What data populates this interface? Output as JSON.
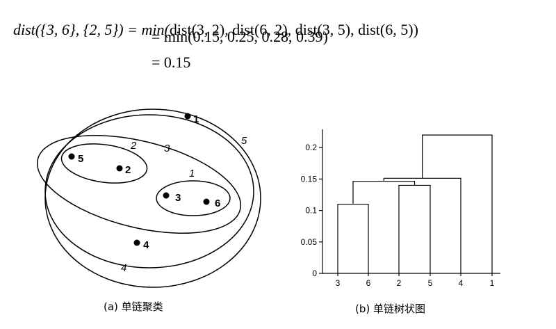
{
  "equations": {
    "line1_lhs": "dist({3, 6}, {2, 5}) = min(",
    "line1_rhs": "dist(3, 2), dist(6, 2), dist(3, 5), dist(6, 5))",
    "line2": "= min(0.15, 0.25, 0.28, 0.39)",
    "line3": "= 0.15"
  },
  "cluster_figure": {
    "caption": "(a)  单链聚类",
    "points": [
      {
        "id": "1",
        "label": "1"
      },
      {
        "id": "2",
        "label": "2"
      },
      {
        "id": "3",
        "label": "3"
      },
      {
        "id": "4",
        "label": "4"
      },
      {
        "id": "5",
        "label": "5"
      },
      {
        "id": "6",
        "label": "6"
      }
    ],
    "cluster_labels": [
      "1",
      "2",
      "3",
      "4",
      "5"
    ]
  },
  "chart_data": {
    "type": "dendrogram",
    "caption": "(b)  单链树状图",
    "leaves": [
      "3",
      "6",
      "2",
      "5",
      "4",
      "1"
    ],
    "ylim": [
      0,
      0.22
    ],
    "yticks": [
      "0",
      "0.05",
      "0.1",
      "0.15",
      "0.2"
    ],
    "ytick_values": [
      0,
      0.05,
      0.1,
      0.15,
      0.2
    ],
    "merges": [
      {
        "left": "3",
        "right": "6",
        "height": 0.11
      },
      {
        "left": "2",
        "right": "5",
        "height": 0.14
      },
      {
        "left": "{3,6}",
        "right": "{2,5}",
        "height": 0.15
      },
      {
        "left": "{3,6,2,5}",
        "right": "4",
        "height": 0.15
      },
      {
        "left": "{3,6,2,5,4}",
        "right": "1",
        "height": 0.22
      }
    ]
  }
}
